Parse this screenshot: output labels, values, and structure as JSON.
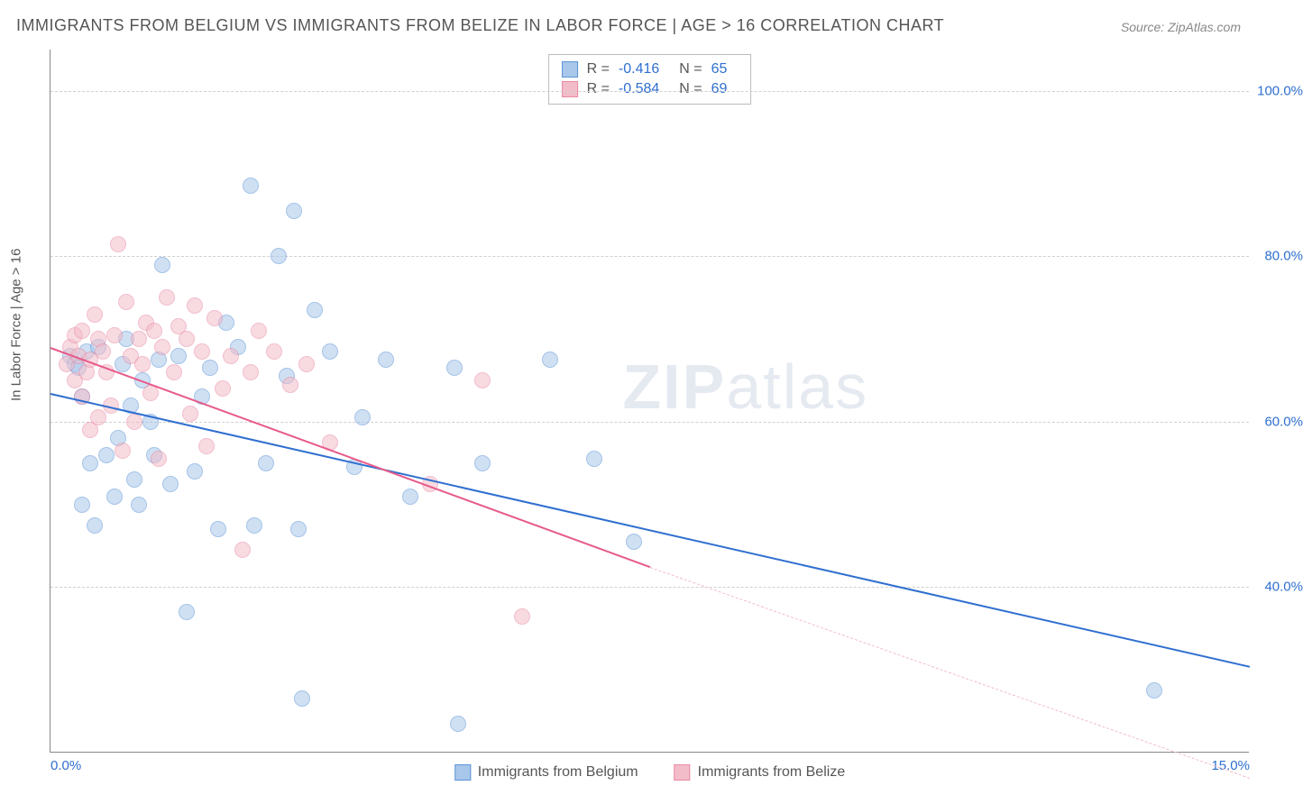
{
  "title": "IMMIGRANTS FROM BELGIUM VS IMMIGRANTS FROM BELIZE IN LABOR FORCE | AGE > 16 CORRELATION CHART",
  "source": "Source: ZipAtlas.com",
  "watermark_a": "ZIP",
  "watermark_b": "atlas",
  "ylabel": "In Labor Force | Age > 16",
  "chart": {
    "type": "scatter",
    "background_color": "#ffffff",
    "grid_color": "#d0d0d0",
    "axis_color": "#888888",
    "xlim": [
      0,
      15
    ],
    "ylim": [
      20,
      105
    ],
    "xticks": [
      {
        "v": 0.0,
        "label": "0.0%"
      },
      {
        "v": 15.0,
        "label": "15.0%"
      }
    ],
    "yticks": [
      {
        "v": 40,
        "label": "40.0%"
      },
      {
        "v": 60,
        "label": "60.0%"
      },
      {
        "v": 80,
        "label": "80.0%"
      },
      {
        "v": 100,
        "label": "100.0%"
      }
    ],
    "point_radius": 9,
    "point_opacity": 0.55,
    "series": [
      {
        "name": "Immigrants from Belgium",
        "color_fill": "#a9c7ea",
        "color_stroke": "#5a93d6",
        "R": "-0.416",
        "N": "65",
        "trend": {
          "x1": 0,
          "y1": 63.5,
          "x2": 15,
          "y2": 30.5,
          "color": "#2f6fd0",
          "width": 2
        },
        "points": [
          [
            0.25,
            68
          ],
          [
            0.3,
            67
          ],
          [
            0.35,
            66.5
          ],
          [
            0.4,
            63
          ],
          [
            0.4,
            50
          ],
          [
            0.45,
            68.5
          ],
          [
            0.5,
            55
          ],
          [
            0.55,
            47.5
          ],
          [
            0.6,
            69
          ],
          [
            0.7,
            56
          ],
          [
            0.8,
            51
          ],
          [
            0.85,
            58
          ],
          [
            0.9,
            67
          ],
          [
            0.95,
            70
          ],
          [
            1.0,
            62
          ],
          [
            1.05,
            53
          ],
          [
            1.1,
            50
          ],
          [
            1.15,
            65
          ],
          [
            1.25,
            60
          ],
          [
            1.3,
            56
          ],
          [
            1.35,
            67.5
          ],
          [
            1.4,
            79
          ],
          [
            1.5,
            52.5
          ],
          [
            1.6,
            68
          ],
          [
            1.7,
            37
          ],
          [
            1.8,
            54
          ],
          [
            1.9,
            63
          ],
          [
            2.0,
            66.5
          ],
          [
            2.1,
            47
          ],
          [
            2.2,
            72
          ],
          [
            2.35,
            69
          ],
          [
            2.5,
            88.5
          ],
          [
            2.55,
            47.5
          ],
          [
            2.7,
            55
          ],
          [
            2.85,
            80
          ],
          [
            2.95,
            65.5
          ],
          [
            3.05,
            85.5
          ],
          [
            3.1,
            47
          ],
          [
            3.15,
            26.5
          ],
          [
            3.3,
            73.5
          ],
          [
            3.5,
            68.5
          ],
          [
            3.8,
            54.5
          ],
          [
            3.9,
            60.5
          ],
          [
            4.2,
            67.5
          ],
          [
            4.5,
            51
          ],
          [
            5.05,
            66.5
          ],
          [
            5.1,
            23.5
          ],
          [
            5.4,
            55
          ],
          [
            6.25,
            67.5
          ],
          [
            6.8,
            55.5
          ],
          [
            7.3,
            45.5
          ],
          [
            13.8,
            27.5
          ]
        ]
      },
      {
        "name": "Immigrants from Belize",
        "color_fill": "#f3bcc9",
        "color_stroke": "#e88aa3",
        "R": "-0.584",
        "N": "69",
        "trend": {
          "x1": 0,
          "y1": 69,
          "x2": 7.5,
          "y2": 42.5,
          "color": "#e75a8a",
          "width": 2,
          "dash_ext": {
            "x2": 15,
            "y2": 17,
            "color": "#f3bcc9"
          }
        },
        "points": [
          [
            0.2,
            67
          ],
          [
            0.25,
            69
          ],
          [
            0.3,
            70.5
          ],
          [
            0.3,
            65
          ],
          [
            0.35,
            68
          ],
          [
            0.4,
            71
          ],
          [
            0.4,
            63
          ],
          [
            0.45,
            66
          ],
          [
            0.5,
            67.5
          ],
          [
            0.5,
            59
          ],
          [
            0.55,
            73
          ],
          [
            0.6,
            70
          ],
          [
            0.6,
            60.5
          ],
          [
            0.65,
            68.5
          ],
          [
            0.7,
            66
          ],
          [
            0.75,
            62
          ],
          [
            0.8,
            70.5
          ],
          [
            0.85,
            81.5
          ],
          [
            0.9,
            56.5
          ],
          [
            0.95,
            74.5
          ],
          [
            1.0,
            68
          ],
          [
            1.05,
            60
          ],
          [
            1.1,
            70
          ],
          [
            1.15,
            67
          ],
          [
            1.2,
            72
          ],
          [
            1.25,
            63.5
          ],
          [
            1.3,
            71
          ],
          [
            1.35,
            55.5
          ],
          [
            1.4,
            69
          ],
          [
            1.45,
            75
          ],
          [
            1.55,
            66
          ],
          [
            1.6,
            71.5
          ],
          [
            1.7,
            70
          ],
          [
            1.75,
            61
          ],
          [
            1.8,
            74
          ],
          [
            1.9,
            68.5
          ],
          [
            1.95,
            57
          ],
          [
            2.05,
            72.5
          ],
          [
            2.15,
            64
          ],
          [
            2.25,
            68
          ],
          [
            2.4,
            44.5
          ],
          [
            2.5,
            66
          ],
          [
            2.6,
            71
          ],
          [
            2.8,
            68.5
          ],
          [
            3.0,
            64.5
          ],
          [
            3.2,
            67
          ],
          [
            3.5,
            57.5
          ],
          [
            4.75,
            52.5
          ],
          [
            5.4,
            65
          ],
          [
            5.9,
            36.5
          ]
        ]
      }
    ]
  },
  "legend": {
    "series_a": "Immigrants from Belgium",
    "series_b": "Immigrants from Belize"
  },
  "stats_labels": {
    "R": "R =",
    "N": "N ="
  }
}
